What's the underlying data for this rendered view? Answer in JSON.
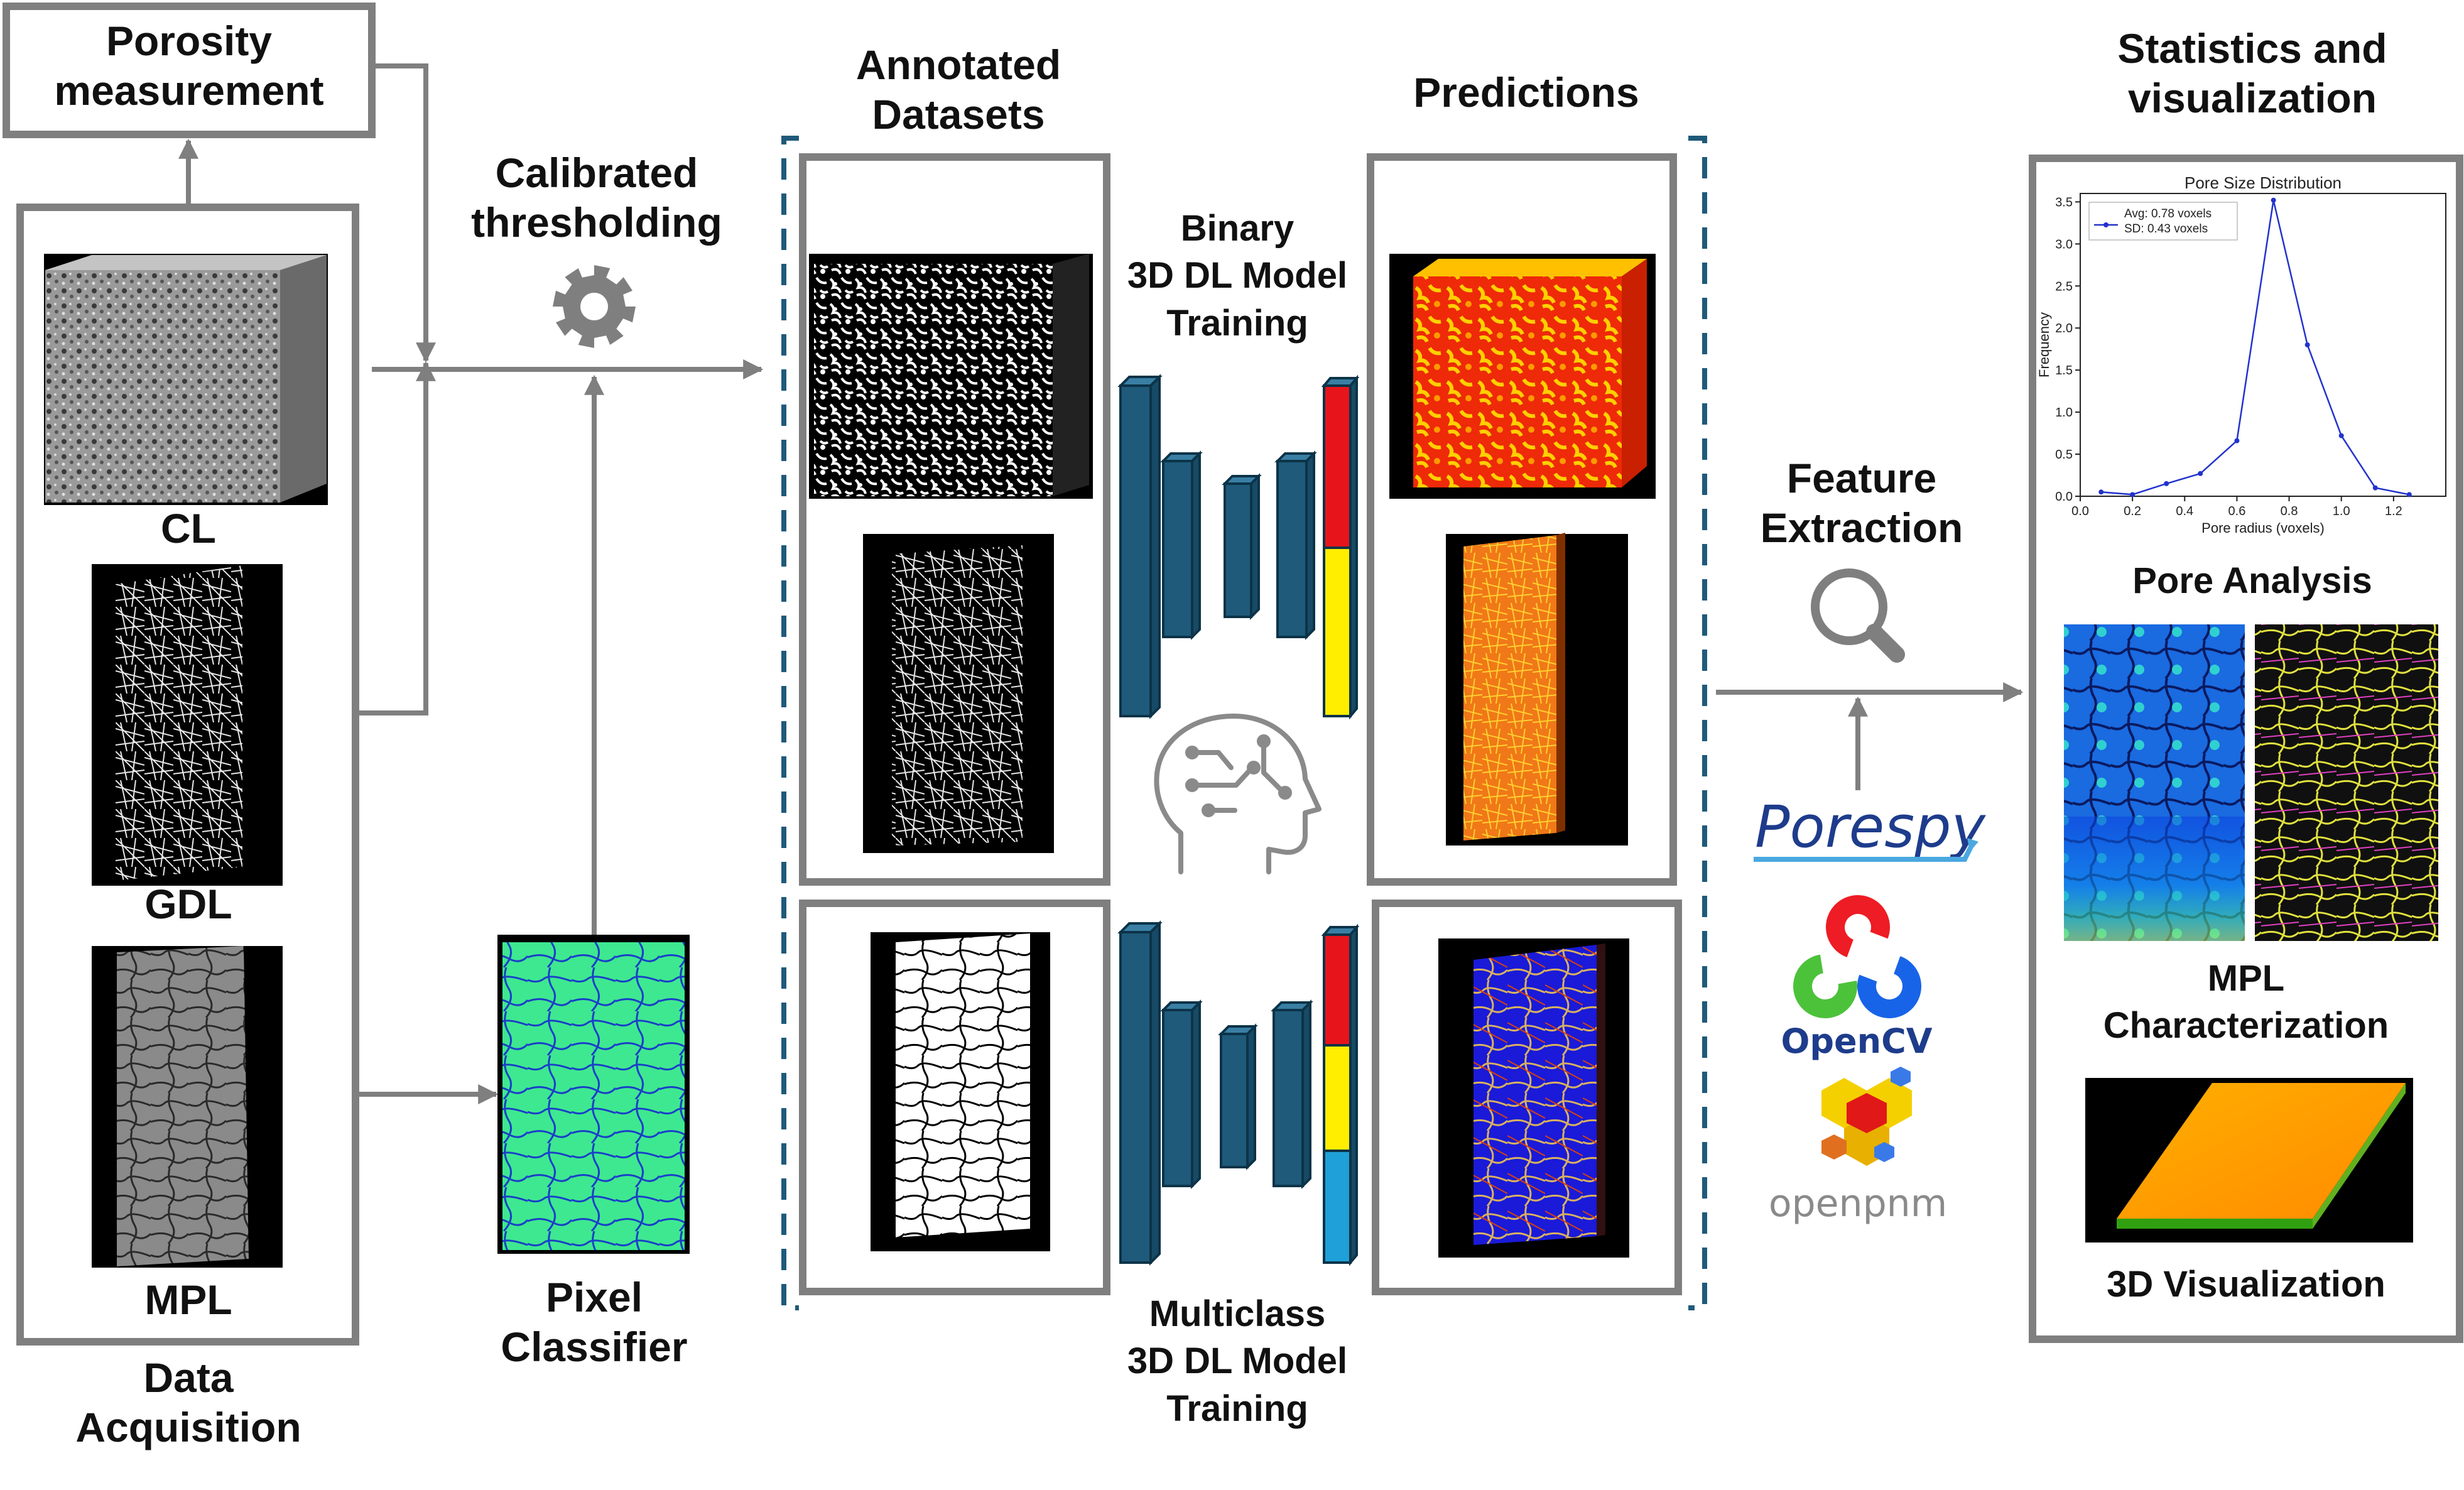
{
  "labels": {
    "porosity_measurement": [
      "Porosity",
      "measurement"
    ],
    "calibrated_thresholding": [
      "Calibrated",
      "thresholding"
    ],
    "annotated_datasets": [
      "Annotated",
      "Datasets"
    ],
    "predictions": "Predictions",
    "statistics_visualization": [
      "Statistics and",
      "visualization"
    ],
    "cl": "CL",
    "gdl": "GDL",
    "mpl": "MPL",
    "data_acquisition": [
      "Data",
      "Acquisition"
    ],
    "pixel_classifier": [
      "Pixel",
      "Classifier"
    ],
    "binary_training": [
      "Binary",
      "3D DL Model",
      "Training"
    ],
    "multiclass_training": [
      "Multiclass",
      "3D DL Model",
      "Training"
    ],
    "feature_extraction": [
      "Feature",
      "Extraction"
    ],
    "pore_analysis": "Pore Analysis",
    "mpl_characterization": [
      "MPL",
      "Characterization"
    ],
    "visualization_3d": "3D Visualization"
  },
  "logos": {
    "porespy": "Porespy",
    "opencv": "OpenCV",
    "openpnm": "openpnm"
  },
  "icons": {
    "gear": "gear-icon",
    "brain": "ai-brain-icon",
    "magnifier": "magnifier-icon"
  },
  "colors": {
    "arrow": "#7f7f7f",
    "box_border": "#7f7f7f",
    "unet_block": "#1f5a7a",
    "dashed_bracket": "#1f5a7a",
    "class_red": "#e8141c",
    "class_yellow": "#ffee00",
    "class_blue": "#1fa0d8"
  },
  "chart_data": {
    "type": "line",
    "title": "Pore Size Distribution",
    "xlabel": "Pore radius (voxels)",
    "ylabel": "Frequency",
    "xlim": [
      0.0,
      1.4
    ],
    "ylim": [
      0.0,
      3.6
    ],
    "xticks": [
      0.0,
      0.2,
      0.4,
      0.6,
      0.8,
      1.0,
      1.2
    ],
    "yticks": [
      0.0,
      0.5,
      1.0,
      1.5,
      2.0,
      2.5,
      3.0,
      3.5
    ],
    "legend_position": "top-left",
    "legend": [
      "Avg: 0.78 voxels",
      "SD: 0.43 voxels"
    ],
    "series": [
      {
        "x": [
          0.08,
          0.2,
          0.33,
          0.46,
          0.6,
          0.74,
          0.87,
          1.0,
          1.13,
          1.26
        ],
        "y": [
          0.05,
          0.02,
          0.15,
          0.27,
          0.66,
          3.52,
          1.8,
          0.72,
          0.1,
          0.02
        ],
        "color": "#2233cc"
      }
    ]
  }
}
